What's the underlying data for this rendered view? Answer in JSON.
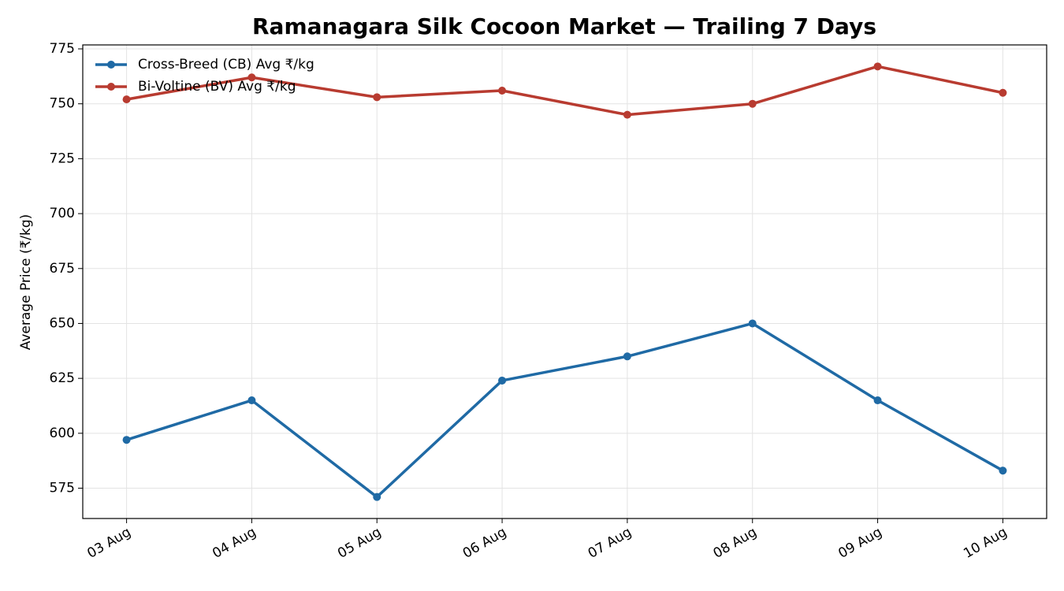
{
  "chart_data": {
    "type": "line",
    "title": "Ramanagara Silk Cocoon Market — Trailing 7 Days",
    "y_label": "Average Price (₹/kg)",
    "categories": [
      "03 Aug",
      "04 Aug",
      "05 Aug",
      "06 Aug",
      "07 Aug",
      "08 Aug",
      "09 Aug",
      "10 Aug"
    ],
    "series": [
      {
        "name": "Cross-Breed (CB) Avg ₹/kg",
        "color": "#1f6aa5",
        "values": [
          597,
          615,
          571,
          624,
          635,
          650,
          615,
          583
        ]
      },
      {
        "name": "Bi-Voltine (BV) Avg ₹/kg",
        "color": "#b83b30",
        "values": [
          752,
          762,
          753,
          756,
          745,
          750,
          767,
          755
        ]
      }
    ],
    "ylim": [
      561.2,
      776.8
    ],
    "yticks": [
      575,
      600,
      625,
      650,
      675,
      700,
      725,
      750,
      775
    ],
    "grid": true,
    "legend": "upper left"
  }
}
